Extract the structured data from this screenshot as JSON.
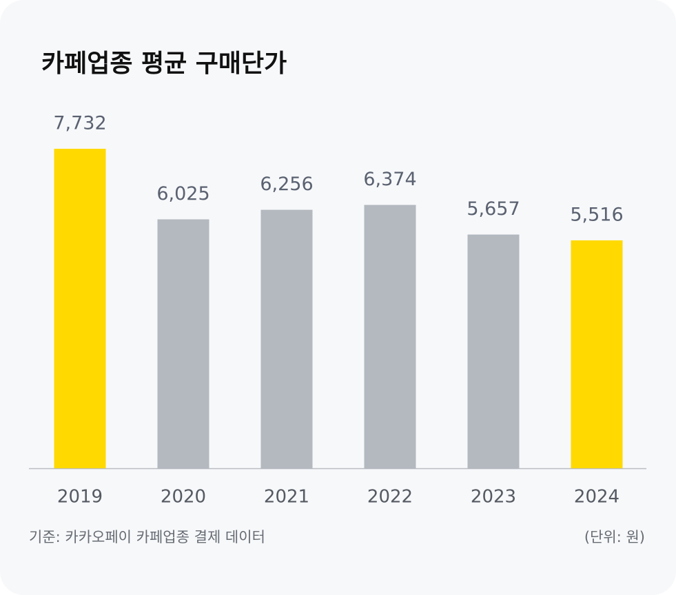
{
  "chart_data": {
    "type": "bar",
    "title": "카페업종 평균 구매단가",
    "categories": [
      "2019",
      "2020",
      "2021",
      "2022",
      "2023",
      "2024"
    ],
    "values": [
      7732,
      6025,
      6256,
      6374,
      5657,
      5516
    ],
    "value_labels": [
      "7,732",
      "6,025",
      "6,256",
      "6,374",
      "5,657",
      "5,516"
    ],
    "colors": [
      "#ffd900",
      "#b3b9bf",
      "#b3b9bf",
      "#b3b9bf",
      "#b3b9bf",
      "#ffd900"
    ],
    "ylim": [
      0,
      8000
    ],
    "source": "기준: 카카오페이 카페업종 결제 데이터",
    "unit": "(단위: 원)"
  }
}
